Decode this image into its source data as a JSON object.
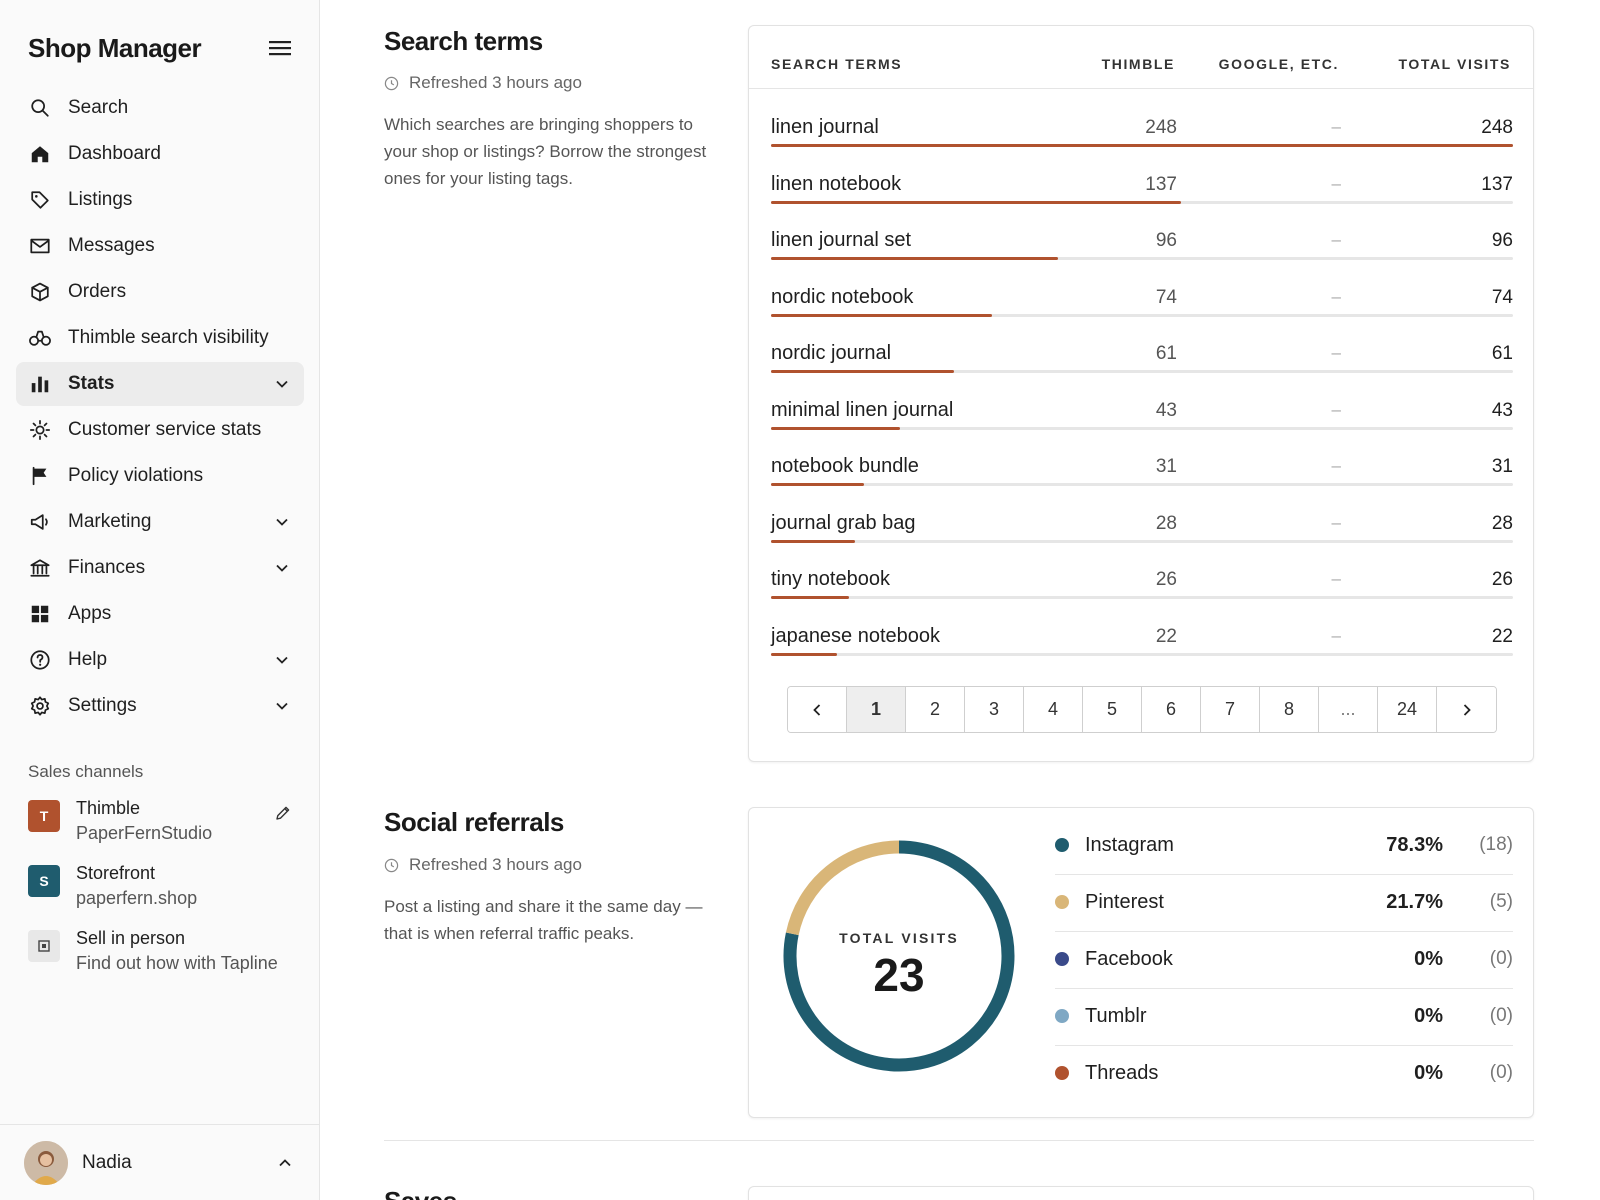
{
  "app": {
    "title": "Shop Manager"
  },
  "nav": {
    "items": [
      {
        "label": "Search",
        "icon": "search-icon"
      },
      {
        "label": "Dashboard",
        "icon": "home-icon"
      },
      {
        "label": "Listings",
        "icon": "tag-icon"
      },
      {
        "label": "Messages",
        "icon": "envelope-icon"
      },
      {
        "label": "Orders",
        "icon": "box-icon"
      },
      {
        "label": "Thimble search visibility",
        "icon": "binoculars-icon"
      },
      {
        "label": "Stats",
        "icon": "bar-chart-icon",
        "active": true,
        "expandable": true
      },
      {
        "label": "Customer service stats",
        "icon": "sun-icon"
      },
      {
        "label": "Policy violations",
        "icon": "flag-icon"
      },
      {
        "label": "Marketing",
        "icon": "megaphone-icon",
        "expandable": true
      },
      {
        "label": "Finances",
        "icon": "bank-icon",
        "expandable": true
      },
      {
        "label": "Apps",
        "icon": "grid-icon"
      },
      {
        "label": "Help",
        "icon": "question-icon",
        "expandable": true
      },
      {
        "label": "Settings",
        "icon": "gear-icon",
        "expandable": true
      }
    ]
  },
  "channels": {
    "title": "Sales channels",
    "items": [
      {
        "badge": "T",
        "name": "Thimble",
        "sub": "PaperFernStudio",
        "color": "#b0522e",
        "editable": true
      },
      {
        "badge": "S",
        "name": "Storefront",
        "sub": "paperfern.shop",
        "color": "#1f5c6e"
      },
      {
        "badge": "",
        "name": "Sell in person",
        "sub": "Find out how with Tapline",
        "color": "#e8e8e8"
      }
    ]
  },
  "user": {
    "name": "Nadia"
  },
  "search_terms": {
    "title": "Search terms",
    "refreshed": "Refreshed 3 hours ago",
    "description": "Which searches are bringing shoppers to your shop or listings? Borrow the strongest ones for your listing tags.",
    "columns": [
      "SEARCH TERMS",
      "THIMBLE",
      "GOOGLE, ETC.",
      "TOTAL VISITS"
    ],
    "rows": [
      {
        "term": "linen journal",
        "thimble": "248",
        "google": "–",
        "total": "248",
        "value": 248
      },
      {
        "term": "linen notebook",
        "thimble": "137",
        "google": "–",
        "total": "137",
        "value": 137
      },
      {
        "term": "linen journal set",
        "thimble": "96",
        "google": "–",
        "total": "96",
        "value": 96
      },
      {
        "term": "nordic notebook",
        "thimble": "74",
        "google": "–",
        "total": "74",
        "value": 74
      },
      {
        "term": "nordic journal",
        "thimble": "61",
        "google": "–",
        "total": "61",
        "value": 61
      },
      {
        "term": "minimal linen journal",
        "thimble": "43",
        "google": "–",
        "total": "43",
        "value": 43
      },
      {
        "term": "notebook bundle",
        "thimble": "31",
        "google": "–",
        "total": "31",
        "value": 31
      },
      {
        "term": "journal grab bag",
        "thimble": "28",
        "google": "–",
        "total": "28",
        "value": 28
      },
      {
        "term": "tiny notebook",
        "thimble": "26",
        "google": "–",
        "total": "26",
        "value": 26
      },
      {
        "term": "japanese notebook",
        "thimble": "22",
        "google": "–",
        "total": "22",
        "value": 22
      }
    ],
    "bar_color": "#b0522e",
    "pagination": {
      "pages": [
        "1",
        "2",
        "3",
        "4",
        "5",
        "6",
        "7",
        "8",
        "...",
        "24"
      ],
      "current": "1"
    }
  },
  "social_referrals": {
    "title": "Social referrals",
    "refreshed": "Refreshed 3 hours ago",
    "description": "Post a listing and share it the same day — that is when referral traffic peaks.",
    "donut_label": "TOTAL VISITS",
    "total": "23",
    "sources": [
      {
        "name": "Instagram",
        "pct": "78.3%",
        "count": "(18)",
        "value": 18,
        "color": "#1f5c6e"
      },
      {
        "name": "Pinterest",
        "pct": "21.7%",
        "count": "(5)",
        "value": 5,
        "color": "#d9b678"
      },
      {
        "name": "Facebook",
        "pct": "0%",
        "count": "(0)",
        "value": 0,
        "color": "#3a4a8a"
      },
      {
        "name": "Tumblr",
        "pct": "0%",
        "count": "(0)",
        "value": 0,
        "color": "#7fa8c4"
      },
      {
        "name": "Threads",
        "pct": "0%",
        "count": "(0)",
        "value": 0,
        "color": "#b0522e"
      }
    ]
  },
  "saves": {
    "title": "Saves"
  }
}
